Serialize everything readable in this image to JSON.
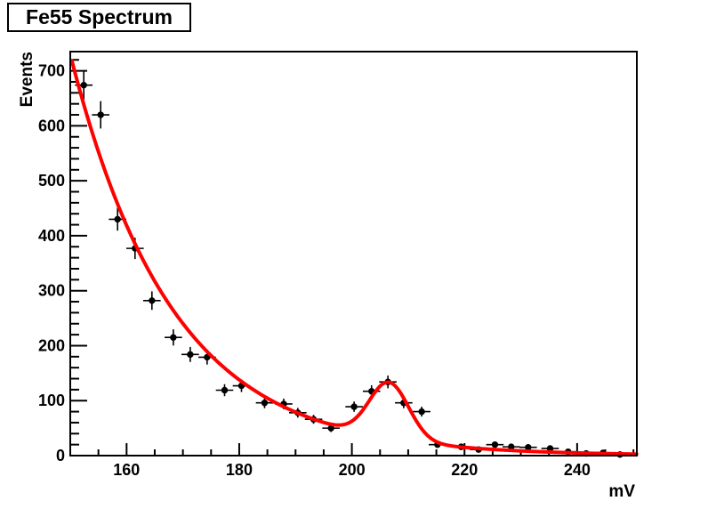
{
  "title_box": {
    "text": "Fe55 Spectrum"
  },
  "colors": {
    "background": "#ffffff",
    "frame": "#000000",
    "marker": "#000000",
    "fit_curve": "#ff0000"
  },
  "chart_data": {
    "type": "scatter",
    "title": "Fe55 Spectrum",
    "xlabel": "mV",
    "ylabel": "Events",
    "xlim": [
      150,
      250.6
    ],
    "ylim": [
      0,
      735
    ],
    "grid": false,
    "legend": "none",
    "x_major_ticks": [
      160,
      180,
      200,
      220,
      240
    ],
    "x_minor_step": 5,
    "y_major_ticks": [
      0,
      100,
      200,
      300,
      400,
      500,
      600,
      700
    ],
    "y_minor_step": 20,
    "series": [
      {
        "name": "fe55-data-points",
        "type": "points_with_errors",
        "marker": "filled-circle",
        "color": "#000000",
        "x_err_halfwidth": 1.55,
        "x": [
          152.4,
          155.4,
          158.4,
          161.5,
          164.5,
          168.3,
          171.3,
          174.3,
          177.4,
          180.4,
          184.5,
          187.9,
          190.4,
          193.2,
          196.3,
          200.4,
          203.5,
          206.4,
          209.2,
          212.4,
          215.2,
          219.4,
          222.5,
          225.4,
          228.3,
          231.3,
          235.2,
          238.4,
          241.6,
          244.6,
          247.6
        ],
        "y": [
          674,
          620,
          430,
          377,
          282,
          215,
          184,
          179,
          119,
          127,
          96,
          94,
          78,
          66,
          50,
          89,
          117,
          134,
          96,
          80,
          20,
          16,
          11,
          20,
          16,
          15,
          13,
          7,
          4,
          5,
          2
        ],
        "y_err": [
          26,
          24.9,
          20.7,
          19.4,
          16.8,
          14.7,
          13.6,
          13.4,
          10.9,
          11.3,
          9.8,
          9.7,
          8.8,
          8.1,
          7.1,
          9.4,
          10.8,
          11.6,
          9.8,
          8.9,
          4.5,
          4,
          3.3,
          4.5,
          4,
          3.9,
          3.6,
          2.6,
          2,
          2.2,
          1.4
        ]
      },
      {
        "name": "fit-exponential-plus-gaussian",
        "type": "function",
        "model": "A*exp(-(x-150)/tau) + G*exp(-0.5*((x-mu)/sigma)^2)",
        "params": {
          "A": 730,
          "tau": 18,
          "G": 102,
          "mu": 206.6,
          "sigma": 3.5
        },
        "x_start": 150.3,
        "x_end": 250.55,
        "color": "#ff0000",
        "line_width": 4
      }
    ]
  }
}
